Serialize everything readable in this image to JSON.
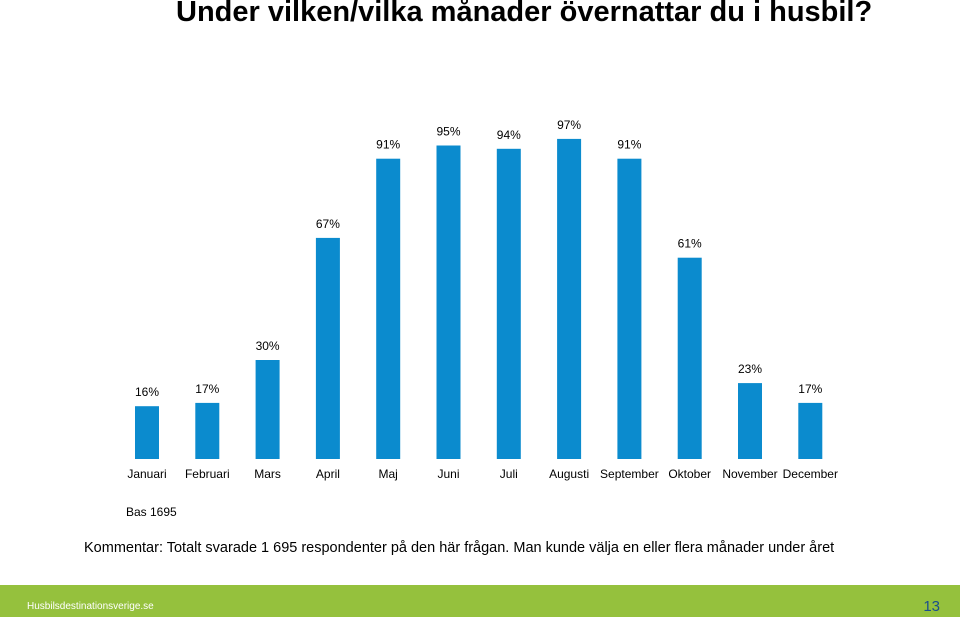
{
  "title": "Under vilken/vilka månader övernattar du i husbil?",
  "base_note": "Bas 1695",
  "comment": "Kommentar: Totalt svarade 1 695  respondenter på den här frågan. Man kunde välja en eller flera månader under året",
  "footer": {
    "site": "Husbilsdestinationsverige.se",
    "page_number": "13"
  },
  "colors": {
    "bar": "#0b8bce",
    "footer": "#95c13d"
  },
  "chart_data": {
    "type": "bar",
    "categories": [
      "Januari",
      "Februari",
      "Mars",
      "April",
      "Maj",
      "Juni",
      "Juli",
      "Augusti",
      "September",
      "Oktober",
      "November",
      "December"
    ],
    "values": [
      16,
      17,
      30,
      67,
      91,
      95,
      94,
      97,
      91,
      61,
      23,
      17
    ],
    "value_labels": [
      "16%",
      "17%",
      "30%",
      "67%",
      "91%",
      "95%",
      "94%",
      "97%",
      "91%",
      "61%",
      "23%",
      "17%"
    ],
    "ylim": [
      0,
      100
    ],
    "grid": false,
    "legend": "none"
  }
}
